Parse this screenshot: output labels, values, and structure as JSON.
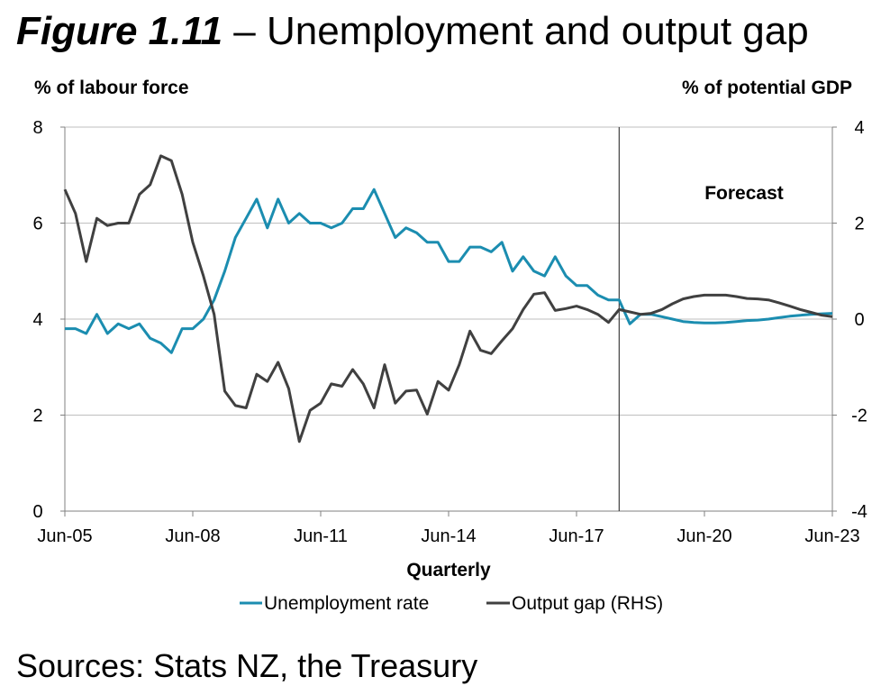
{
  "figure": {
    "number": "Figure 1.11",
    "dash": " – ",
    "title": "Unemployment and output gap",
    "source": "Sources: Stats NZ, the Treasury"
  },
  "colors": {
    "unemployment": "#1b8db0",
    "output_gap": "#404040",
    "grid": "#bfbfbf",
    "axis": "#808080"
  },
  "chart_data": {
    "type": "line",
    "xlabel": "Quarterly",
    "ylabel_left": "% of labour force",
    "ylabel_right": "% of potential GDP",
    "ylim_left": [
      0,
      8
    ],
    "ylim_right": [
      -4,
      4
    ],
    "yticks_left": [
      "0",
      "2",
      "4",
      "6",
      "8"
    ],
    "yticks_right": [
      "-4",
      "-2",
      "0",
      "2",
      "4"
    ],
    "x_tick_labels": [
      "Jun-05",
      "Jun-08",
      "Jun-11",
      "Jun-14",
      "Jun-17",
      "Jun-20",
      "Jun-23"
    ],
    "x_start": "Jun-05",
    "x_end": "Jun-23",
    "grid": true,
    "legend_position": "bottom",
    "annotation": {
      "text": "Forecast",
      "x": "Jun-18"
    },
    "series": [
      {
        "name": "Unemployment rate",
        "axis": "left",
        "values": [
          3.8,
          3.8,
          3.7,
          4.1,
          3.7,
          3.9,
          3.8,
          3.9,
          3.6,
          3.5,
          3.3,
          3.8,
          3.8,
          4.0,
          4.4,
          5.0,
          5.7,
          6.1,
          6.5,
          5.9,
          6.5,
          6.0,
          6.2,
          6.0,
          6.0,
          5.9,
          6.0,
          6.3,
          6.3,
          6.7,
          6.2,
          5.7,
          5.9,
          5.8,
          5.6,
          5.6,
          5.2,
          5.2,
          5.5,
          5.5,
          5.4,
          5.6,
          5.0,
          5.3,
          5.0,
          4.9,
          5.3,
          4.9,
          4.7,
          4.7,
          4.5,
          4.4,
          4.4,
          3.9,
          4.1,
          4.1,
          4.05,
          4.0,
          3.95,
          3.93,
          3.92,
          3.92,
          3.93,
          3.95,
          3.97,
          3.98,
          4.0,
          4.03,
          4.06,
          4.08,
          4.1,
          4.11,
          4.12
        ]
      },
      {
        "name": "Output gap (RHS)",
        "axis": "right",
        "values": [
          2.7,
          2.2,
          1.2,
          2.1,
          1.95,
          2.0,
          2.0,
          2.6,
          2.8,
          3.4,
          3.3,
          2.6,
          1.6,
          0.9,
          0.1,
          -1.5,
          -1.8,
          -1.85,
          -1.15,
          -1.3,
          -0.9,
          -1.45,
          -2.55,
          -1.9,
          -1.75,
          -1.35,
          -1.4,
          -1.05,
          -1.35,
          -1.85,
          -0.95,
          -1.75,
          -1.5,
          -1.48,
          -1.98,
          -1.3,
          -1.48,
          -0.95,
          -0.25,
          -0.65,
          -0.72,
          -0.45,
          -0.2,
          0.2,
          0.52,
          0.55,
          0.18,
          0.22,
          0.27,
          0.2,
          0.1,
          -0.07,
          0.2,
          0.15,
          0.1,
          0.12,
          0.2,
          0.32,
          0.42,
          0.47,
          0.5,
          0.5,
          0.5,
          0.47,
          0.43,
          0.42,
          0.4,
          0.34,
          0.27,
          0.2,
          0.14,
          0.08,
          0.05
        ]
      }
    ]
  }
}
